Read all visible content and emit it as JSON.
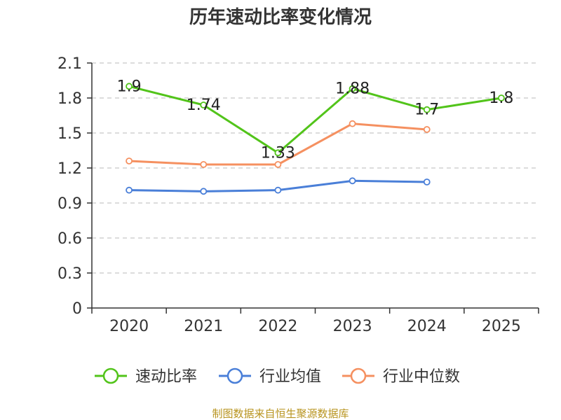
{
  "chart_data": {
    "type": "line",
    "title": "历年速动比率变化情况",
    "categories": [
      "2020",
      "2021",
      "2022",
      "2023",
      "2024",
      "2025"
    ],
    "ylim": [
      0,
      2.1
    ],
    "yticks": [
      "0",
      "0.3",
      "0.6",
      "0.9",
      "1.2",
      "1.5",
      "1.8",
      "2.1"
    ],
    "grid": true,
    "legend_position": "bottom",
    "series": [
      {
        "name": "速动比率",
        "color": "#52c41a",
        "values": [
          1.9,
          1.74,
          1.33,
          1.88,
          1.7,
          1.8
        ],
        "labels": [
          "1.9",
          "1.74",
          "1.33",
          "1.88",
          "1.7",
          "1.8"
        ]
      },
      {
        "name": "行业均值",
        "color": "#4a7fd8",
        "values": [
          1.01,
          1.0,
          1.01,
          1.09,
          1.08,
          null
        ]
      },
      {
        "name": "行业中位数",
        "color": "#f59060",
        "values": [
          1.26,
          1.23,
          1.23,
          1.58,
          1.53,
          null
        ]
      }
    ]
  },
  "footer": {
    "source": "制图数据来自恒生聚源数据库"
  }
}
